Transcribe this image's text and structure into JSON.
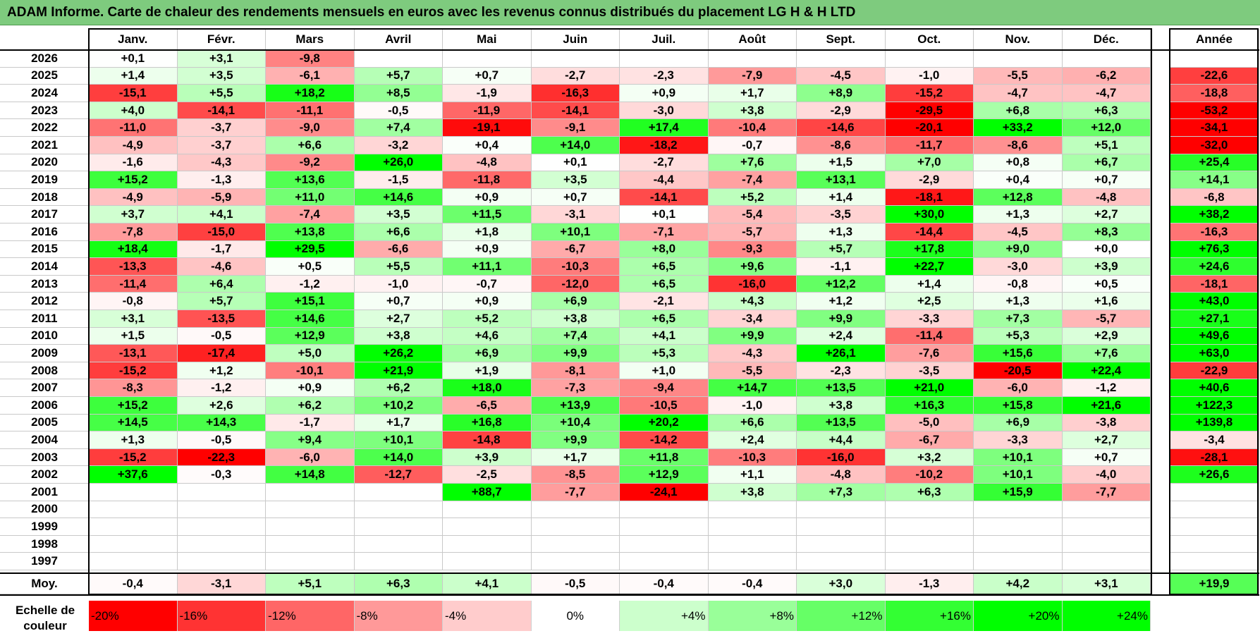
{
  "title": "ADAM Informe. Carte de chaleur des rendements mensuels en euros avec les revenus connus distribués du placement LG H & H LTD",
  "chart_data": {
    "type": "heatmap",
    "title": "ADAM Informe. Carte de chaleur des rendements mensuels en euros avec les revenus connus distribués du placement LG H & H LTD",
    "columns": [
      "Janv.",
      "Févr.",
      "Mars",
      "Avril",
      "Mai",
      "Juin",
      "Juil.",
      "Août",
      "Sept.",
      "Oct.",
      "Nov.",
      "Déc."
    ],
    "year_column": "Année",
    "rows": [
      {
        "year": "2026",
        "months": [
          "+0,1",
          "+3,1",
          "-9,8",
          "",
          "",
          "",
          "",
          "",
          "",
          "",
          "",
          ""
        ],
        "annual": ""
      },
      {
        "year": "2025",
        "months": [
          "+1,4",
          "+3,5",
          "-6,1",
          "+5,7",
          "+0,7",
          "-2,7",
          "-2,3",
          "-7,9",
          "-4,5",
          "-1,0",
          "-5,5",
          "-6,2"
        ],
        "annual": "-22,6"
      },
      {
        "year": "2024",
        "months": [
          "-15,1",
          "+5,5",
          "+18,2",
          "+8,5",
          "-1,9",
          "-16,3",
          "+0,9",
          "+1,7",
          "+8,9",
          "-15,2",
          "-4,7",
          "-4,7"
        ],
        "annual": "-18,8"
      },
      {
        "year": "2023",
        "months": [
          "+4,0",
          "-14,1",
          "-11,1",
          "-0,5",
          "-11,9",
          "-14,1",
          "-3,0",
          "+3,8",
          "-2,9",
          "-29,5",
          "+6,8",
          "+6,3"
        ],
        "annual": "-53,2"
      },
      {
        "year": "2022",
        "months": [
          "-11,0",
          "-3,7",
          "-9,0",
          "+7,4",
          "-19,1",
          "-9,1",
          "+17,4",
          "-10,4",
          "-14,6",
          "-20,1",
          "+33,2",
          "+12,0"
        ],
        "annual": "-34,1"
      },
      {
        "year": "2021",
        "months": [
          "-4,9",
          "-3,7",
          "+6,6",
          "-3,2",
          "+0,4",
          "+14,0",
          "-18,2",
          "-0,7",
          "-8,6",
          "-11,7",
          "-8,6",
          "+5,1"
        ],
        "annual": "-32,0"
      },
      {
        "year": "2020",
        "months": [
          "-1,6",
          "-4,3",
          "-9,2",
          "+26,0",
          "-4,8",
          "+0,1",
          "-2,7",
          "+7,6",
          "+1,5",
          "+7,0",
          "+0,8",
          "+6,7"
        ],
        "annual": "+25,4"
      },
      {
        "year": "2019",
        "months": [
          "+15,2",
          "-1,3",
          "+13,6",
          "-1,5",
          "-11,8",
          "+3,5",
          "-4,4",
          "-7,4",
          "+13,1",
          "-2,9",
          "+0,4",
          "+0,7"
        ],
        "annual": "+14,1"
      },
      {
        "year": "2018",
        "months": [
          "-4,9",
          "-5,9",
          "+11,0",
          "+14,6",
          "+0,9",
          "+0,7",
          "-14,1",
          "+5,2",
          "+1,4",
          "-18,1",
          "+12,8",
          "-4,8"
        ],
        "annual": "-6,8"
      },
      {
        "year": "2017",
        "months": [
          "+3,7",
          "+4,1",
          "-7,4",
          "+3,5",
          "+11,5",
          "-3,1",
          "+0,1",
          "-5,4",
          "-3,5",
          "+30,0",
          "+1,3",
          "+2,7"
        ],
        "annual": "+38,2"
      },
      {
        "year": "2016",
        "months": [
          "-7,8",
          "-15,0",
          "+13,8",
          "+6,6",
          "+1,8",
          "+10,1",
          "-7,1",
          "-5,7",
          "+1,3",
          "-14,4",
          "-4,5",
          "+8,3"
        ],
        "annual": "-16,3"
      },
      {
        "year": "2015",
        "months": [
          "+18,4",
          "-1,7",
          "+29,5",
          "-6,6",
          "+0,9",
          "-6,7",
          "+8,0",
          "-9,3",
          "+5,7",
          "+17,8",
          "+9,0",
          "+0,0"
        ],
        "annual": "+76,3"
      },
      {
        "year": "2014",
        "months": [
          "-13,3",
          "-4,6",
          "+0,5",
          "+5,5",
          "+11,1",
          "-10,3",
          "+6,5",
          "+9,6",
          "-1,1",
          "+22,7",
          "-3,0",
          "+3,9"
        ],
        "annual": "+24,6"
      },
      {
        "year": "2013",
        "months": [
          "-11,4",
          "+6,4",
          "-1,2",
          "-1,0",
          "-0,7",
          "-12,0",
          "+6,5",
          "-16,0",
          "+12,2",
          "+1,4",
          "-0,8",
          "+0,5"
        ],
        "annual": "-18,1"
      },
      {
        "year": "2012",
        "months": [
          "-0,8",
          "+5,7",
          "+15,1",
          "+0,7",
          "+0,9",
          "+6,9",
          "-2,1",
          "+4,3",
          "+1,2",
          "+2,5",
          "+1,3",
          "+1,6"
        ],
        "annual": "+43,0"
      },
      {
        "year": "2011",
        "months": [
          "+3,1",
          "-13,5",
          "+14,6",
          "+2,7",
          "+5,2",
          "+3,8",
          "+6,5",
          "-3,4",
          "+9,9",
          "-3,3",
          "+7,3",
          "-5,7"
        ],
        "annual": "+27,1"
      },
      {
        "year": "2010",
        "months": [
          "+1,5",
          "-0,5",
          "+12,9",
          "+3,8",
          "+4,6",
          "+7,4",
          "+4,1",
          "+9,9",
          "+2,4",
          "-11,4",
          "+5,3",
          "+2,9"
        ],
        "annual": "+49,6"
      },
      {
        "year": "2009",
        "months": [
          "-13,1",
          "-17,4",
          "+5,0",
          "+26,2",
          "+6,9",
          "+9,9",
          "+5,3",
          "-4,3",
          "+26,1",
          "-7,6",
          "+15,6",
          "+7,6"
        ],
        "annual": "+63,0"
      },
      {
        "year": "2008",
        "months": [
          "-15,2",
          "+1,2",
          "-10,1",
          "+21,9",
          "+1,9",
          "-8,1",
          "+1,0",
          "-5,5",
          "-2,3",
          "-3,5",
          "-20,5",
          "+22,4"
        ],
        "annual": "-22,9"
      },
      {
        "year": "2007",
        "months": [
          "-8,3",
          "-1,2",
          "+0,9",
          "+6,2",
          "+18,0",
          "-7,3",
          "-9,4",
          "+14,7",
          "+13,5",
          "+21,0",
          "-6,0",
          "-1,2"
        ],
        "annual": "+40,6"
      },
      {
        "year": "2006",
        "months": [
          "+15,2",
          "+2,6",
          "+6,2",
          "+10,2",
          "-6,5",
          "+13,9",
          "-10,5",
          "-1,0",
          "+3,8",
          "+16,3",
          "+15,8",
          "+21,6"
        ],
        "annual": "+122,3"
      },
      {
        "year": "2005",
        "months": [
          "+14,5",
          "+14,3",
          "-1,7",
          "+1,7",
          "+16,8",
          "+10,4",
          "+20,2",
          "+6,6",
          "+13,5",
          "-5,0",
          "+6,9",
          "-3,8"
        ],
        "annual": "+139,8"
      },
      {
        "year": "2004",
        "months": [
          "+1,3",
          "-0,5",
          "+9,4",
          "+10,1",
          "-14,8",
          "+9,9",
          "-14,2",
          "+2,4",
          "+4,4",
          "-6,7",
          "-3,3",
          "+2,7"
        ],
        "annual": "-3,4"
      },
      {
        "year": "2003",
        "months": [
          "-15,2",
          "-22,3",
          "-6,0",
          "+14,0",
          "+3,9",
          "+1,7",
          "+11,8",
          "-10,3",
          "-16,0",
          "+3,2",
          "+10,1",
          "+0,7"
        ],
        "annual": "-28,1"
      },
      {
        "year": "2002",
        "months": [
          "+37,6",
          "-0,3",
          "+14,8",
          "-12,7",
          "-2,5",
          "-8,5",
          "+12,9",
          "+1,1",
          "-4,8",
          "-10,2",
          "+10,1",
          "-4,0"
        ],
        "annual": "+26,6"
      },
      {
        "year": "2001",
        "months": [
          "",
          "",
          "",
          "",
          "+88,7",
          "-7,7",
          "-24,1",
          "+3,8",
          "+7,3",
          "+6,3",
          "+15,9",
          "-7,7"
        ],
        "annual": ""
      },
      {
        "year": "2000",
        "months": [
          "",
          "",
          "",
          "",
          "",
          "",
          "",
          "",
          "",
          "",
          "",
          ""
        ],
        "annual": ""
      },
      {
        "year": "1999",
        "months": [
          "",
          "",
          "",
          "",
          "",
          "",
          "",
          "",
          "",
          "",
          "",
          ""
        ],
        "annual": ""
      },
      {
        "year": "1998",
        "months": [
          "",
          "",
          "",
          "",
          "",
          "",
          "",
          "",
          "",
          "",
          "",
          ""
        ],
        "annual": ""
      },
      {
        "year": "1997",
        "months": [
          "",
          "",
          "",
          "",
          "",
          "",
          "",
          "",
          "",
          "",
          "",
          ""
        ],
        "annual": ""
      }
    ],
    "average": {
      "label": "Moy.",
      "months": [
        "-0,4",
        "-3,1",
        "+5,1",
        "+6,3",
        "+4,1",
        "-0,5",
        "-0,4",
        "-0,4",
        "+3,0",
        "-1,3",
        "+4,2",
        "+3,1"
      ],
      "annual": "+19,9"
    },
    "scale": {
      "label": "Echelle de couleur",
      "stops": [
        "-20%",
        "-16%",
        "-12%",
        "-8%",
        "-4%",
        "0%",
        "+4%",
        "+8%",
        "+12%",
        "+16%",
        "+20%",
        "+24%"
      ],
      "colors": [
        "#ff0000",
        "#ff3333",
        "#ff6666",
        "#ff9999",
        "#ffcccc",
        "#ffffff",
        "#ccffcc",
        "#99ff99",
        "#66ff66",
        "#33ff33",
        "#00ff00",
        "#00ff00"
      ]
    },
    "colors": {
      "negative": "#ff0000",
      "zero": "#ffffff",
      "positive": "#00ff00",
      "title_bg": "#7ecb7e"
    }
  }
}
